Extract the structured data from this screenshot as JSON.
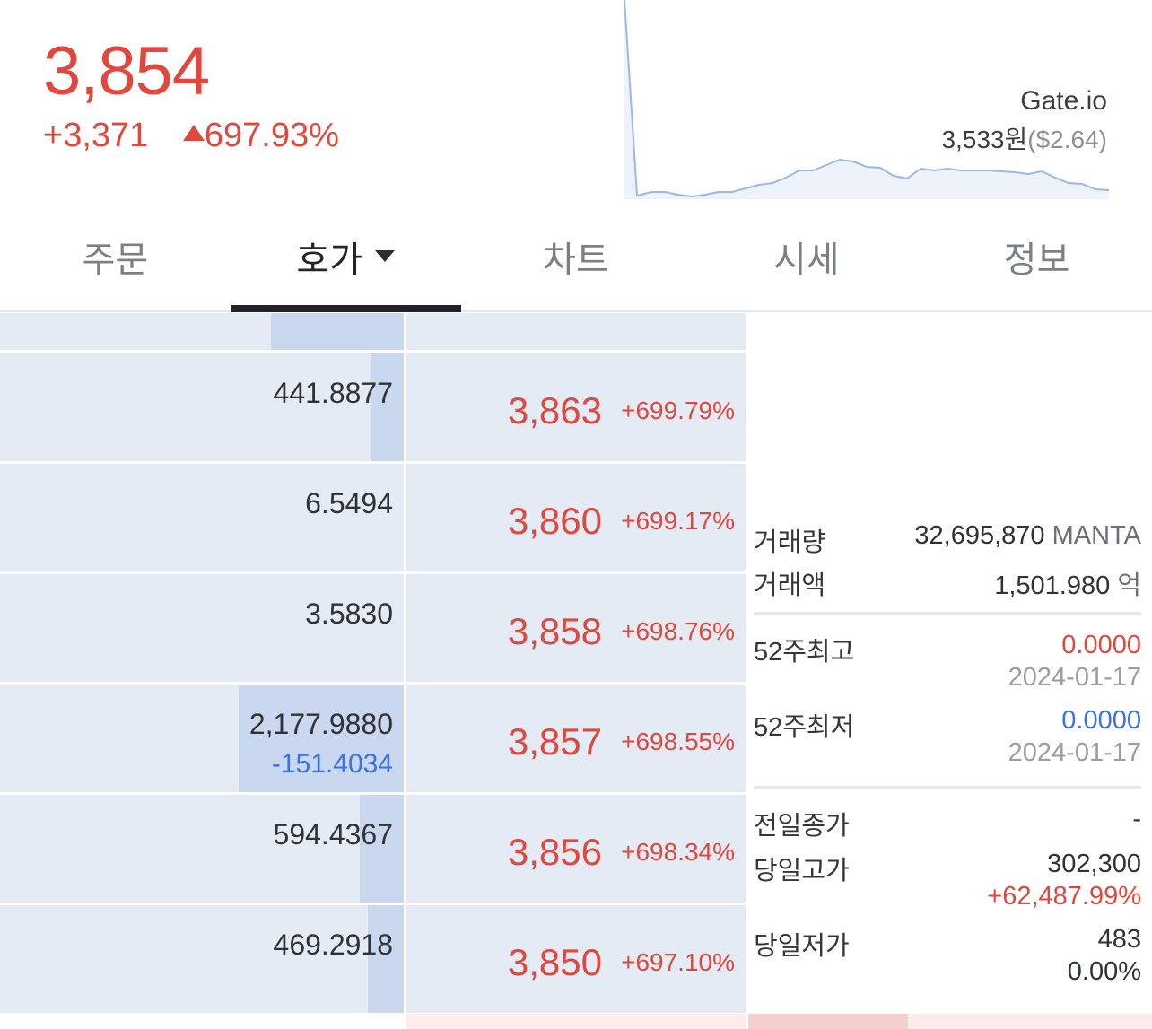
{
  "header": {
    "price": "3,854",
    "change_abs": "+3,371",
    "change_pct": "697.93%",
    "exchange": {
      "name": "Gate.io",
      "price_krw": "3,533원",
      "price_usd": "($2.64)"
    }
  },
  "tabs": [
    {
      "label": "주문",
      "active": false
    },
    {
      "label": "호가",
      "active": true
    },
    {
      "label": "차트",
      "active": false
    },
    {
      "label": "시세",
      "active": false
    },
    {
      "label": "정보",
      "active": false
    }
  ],
  "order_book": {
    "rows": [
      {
        "qty": "441.8877",
        "diff": "",
        "price": "3,863",
        "pct": "+699.79%",
        "fill": 0.08
      },
      {
        "qty": "6.5494",
        "diff": "",
        "price": "3,860",
        "pct": "+699.17%",
        "fill": 0.0
      },
      {
        "qty": "3.5830",
        "diff": "",
        "price": "3,858",
        "pct": "+698.76%",
        "fill": 0.0
      },
      {
        "qty": "2,177.9880",
        "diff": "-151.4034",
        "price": "3,857",
        "pct": "+698.55%",
        "fill": 0.41
      },
      {
        "qty": "594.4367",
        "diff": "",
        "price": "3,856",
        "pct": "+698.34%",
        "fill": 0.11
      },
      {
        "qty": "469.2918",
        "diff": "",
        "price": "3,850",
        "pct": "+697.10%",
        "fill": 0.09
      }
    ]
  },
  "info": {
    "volume_label": "거래량",
    "volume_value": "32,695,870",
    "volume_unit": "MANTA",
    "amount_label": "거래액",
    "amount_value": "1,501.980",
    "amount_unit": "억",
    "high52_label": "52주최고",
    "high52_value": "0.0000",
    "high52_date": "2024-01-17",
    "low52_label": "52주최저",
    "low52_value": "0.0000",
    "low52_date": "2024-01-17",
    "prev_close_label": "전일종가",
    "prev_close_value": "-",
    "day_high_label": "당일고가",
    "day_high_value": "302,300",
    "day_high_pct": "+62,487.99%",
    "day_low_label": "당일저가",
    "day_low_value": "483",
    "day_low_pct": "0.00%"
  },
  "colors": {
    "up": "#e0483d",
    "down": "#3b72e6",
    "cell_bg": "#e5ebf5",
    "bar": "#c9d8ee"
  }
}
